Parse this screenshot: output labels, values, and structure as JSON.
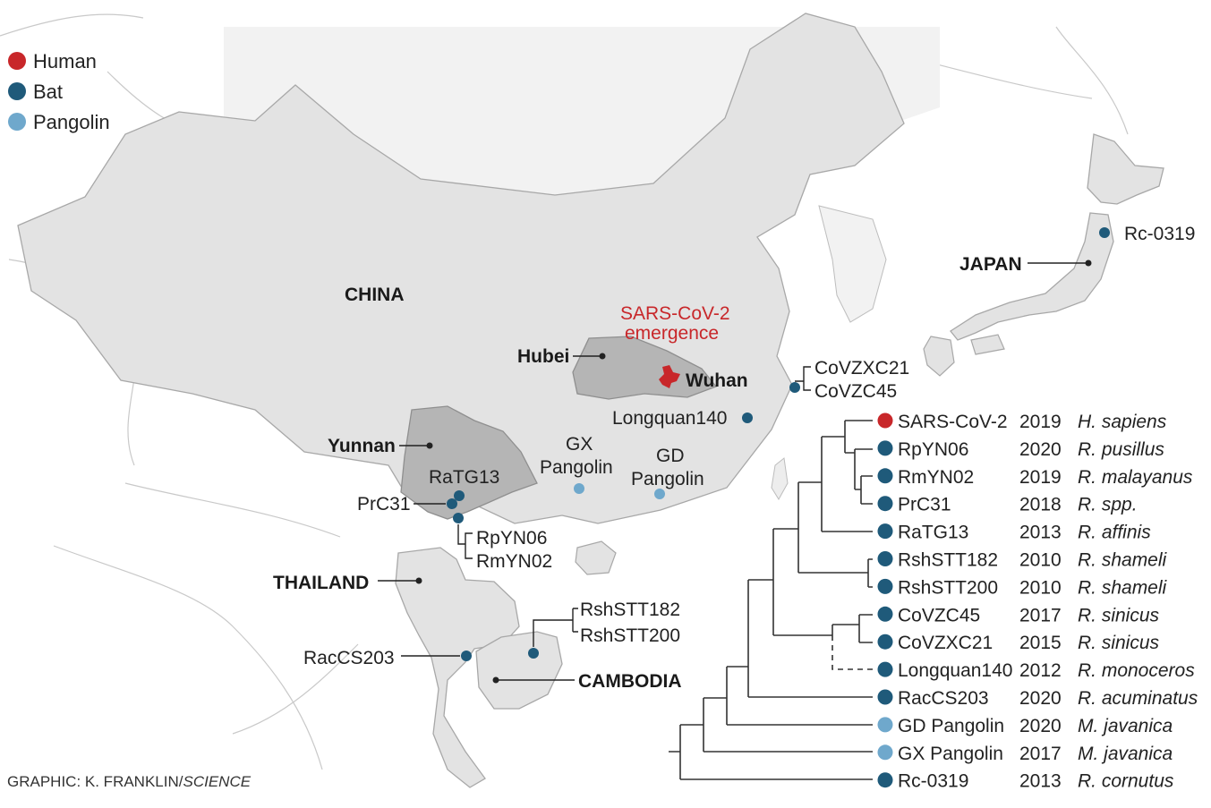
{
  "legend": [
    {
      "label": "Human",
      "color": "#c8272a"
    },
    {
      "label": "Bat",
      "color": "#1f5a7a"
    },
    {
      "label": "Pangolin",
      "color": "#6fa8cc"
    }
  ],
  "regions": {
    "china": "CHINA",
    "japan": "JAPAN",
    "thailand": "THAILAND",
    "cambodia": "CAMBODIA",
    "hubei": "Hubei",
    "yunnan": "Yunnan",
    "wuhan": "Wuhan"
  },
  "emergence": {
    "line1": "SARS-CoV-2",
    "line2": "emergence"
  },
  "map_labels": {
    "ratg13": "RaTG13",
    "prc31": "PrC31",
    "rpyn06": "RpYN06",
    "rmyn02": "RmYN02",
    "gx_line1": "GX",
    "gx_line2": "Pangolin",
    "gd_line1": "GD",
    "gd_line2": "Pangolin",
    "longquan": "Longquan140",
    "covzxc21": "CoVZXC21",
    "covzc45": "CoVZC45",
    "rshstt182": "RshSTT182",
    "rshstt200": "RshSTT200",
    "raccs203": "RacCS203",
    "rc0319": "Rc-0319"
  },
  "tree_rows": [
    {
      "name": "SARS-CoV-2",
      "year": "2019",
      "host": "H. sapiens",
      "type": "human"
    },
    {
      "name": "RpYN06",
      "year": "2020",
      "host": "R. pusillus",
      "type": "bat"
    },
    {
      "name": "RmYN02",
      "year": "2019",
      "host": "R. malayanus",
      "type": "bat"
    },
    {
      "name": "PrC31",
      "year": "2018",
      "host": "R. spp.",
      "type": "bat"
    },
    {
      "name": "RaTG13",
      "year": "2013",
      "host": "R. affinis",
      "type": "bat"
    },
    {
      "name": "RshSTT182",
      "year": "2010",
      "host": "R. shameli",
      "type": "bat"
    },
    {
      "name": "RshSTT200",
      "year": "2010",
      "host": "R. shameli",
      "type": "bat"
    },
    {
      "name": "CoVZC45",
      "year": "2017",
      "host": "R. sinicus",
      "type": "bat"
    },
    {
      "name": "CoVZXC21",
      "year": "2015",
      "host": "R. sinicus",
      "type": "bat"
    },
    {
      "name": "Longquan140",
      "year": "2012",
      "host": "R. monoceros",
      "type": "bat"
    },
    {
      "name": "RacCS203",
      "year": "2020",
      "host": "R. acuminatus",
      "type": "bat"
    },
    {
      "name": "GD Pangolin",
      "year": "2020",
      "host": "M. javanica",
      "type": "pangolin"
    },
    {
      "name": "GX Pangolin",
      "year": "2017",
      "host": "M. javanica",
      "type": "pangolin"
    },
    {
      "name": "Rc-0319",
      "year": "2013",
      "host": "R. cornutus",
      "type": "bat"
    }
  ],
  "credit": {
    "prefix": "GRAPHIC: K. FRANKLIN/",
    "source": "SCIENCE"
  }
}
